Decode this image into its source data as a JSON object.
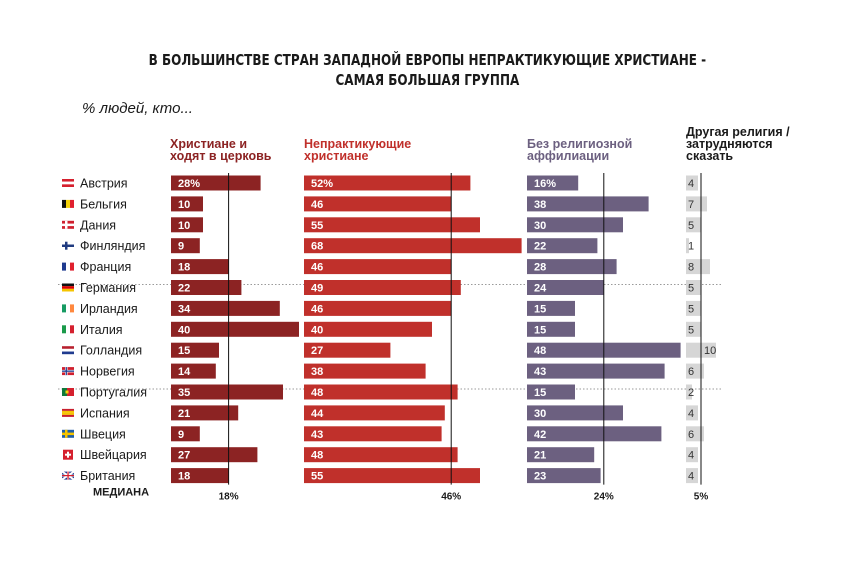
{
  "title_line1": "В БОЛЬШИНСТВЕ СТРАН ЗАПАДНОЙ ЕВРОПЫ НЕПРАКТИКУЮЩИЕ ХРИСТИАНЕ -",
  "title_line2": "САМАЯ БОЛЬШАЯ ГРУППА",
  "subtitle": "% людей, кто...",
  "colors": {
    "churchgoing": "#8c2323",
    "nonpracticing": "#c0302b",
    "unaffiliated": "#6c6080",
    "other": "#d6d6d6"
  },
  "chart_data": {
    "type": "bar",
    "categories": [
      "Австрия",
      "Бельгия",
      "Дания",
      "Финляндия",
      "Франция",
      "Германия",
      "Ирландия",
      "Италия",
      "Голландия",
      "Норвегия",
      "Португалия",
      "Испания",
      "Швеция",
      "Швейцария",
      "Британия"
    ],
    "flags": [
      "austria-flag-icon",
      "belgium-flag-icon",
      "denmark-flag-icon",
      "finland-flag-icon",
      "france-flag-icon",
      "germany-flag-icon",
      "ireland-flag-icon",
      "italy-flag-icon",
      "netherlands-flag-icon",
      "norway-flag-icon",
      "portugal-flag-icon",
      "spain-flag-icon",
      "sweden-flag-icon",
      "switzerland-flag-icon",
      "uk-flag-icon"
    ],
    "series": [
      {
        "name": "Христиане и ходят в церковь",
        "header": [
          "Христиане и",
          "ходят в церковь"
        ],
        "values": [
          28,
          10,
          10,
          9,
          18,
          22,
          34,
          40,
          15,
          14,
          35,
          21,
          9,
          27,
          18
        ],
        "first_label": "28%",
        "median": 18,
        "median_label": "18%"
      },
      {
        "name": "Непрактикующие христиане",
        "header": [
          "Непрактикующие",
          "христиане"
        ],
        "values": [
          52,
          46,
          55,
          68,
          46,
          49,
          46,
          40,
          27,
          38,
          48,
          44,
          43,
          48,
          55
        ],
        "first_label": "52%",
        "median": 46,
        "median_label": "46%"
      },
      {
        "name": "Без религиозной аффилиации",
        "header": [
          "Без религиозной",
          "аффилиации"
        ],
        "values": [
          16,
          38,
          30,
          22,
          28,
          24,
          15,
          15,
          48,
          43,
          15,
          30,
          42,
          21,
          23
        ],
        "first_label": "16%",
        "median": 24,
        "median_label": "24%"
      },
      {
        "name": "Другая религия / затрудняются сказать",
        "header": [
          "Другая религия /",
          "затрудняются",
          "сказать"
        ],
        "values": [
          4,
          7,
          5,
          1,
          8,
          5,
          5,
          5,
          10,
          6,
          2,
          4,
          6,
          4,
          4
        ],
        "first_label": "4",
        "median": 5,
        "median_label": "5%"
      }
    ],
    "median_label": "МЕДИАНА"
  }
}
